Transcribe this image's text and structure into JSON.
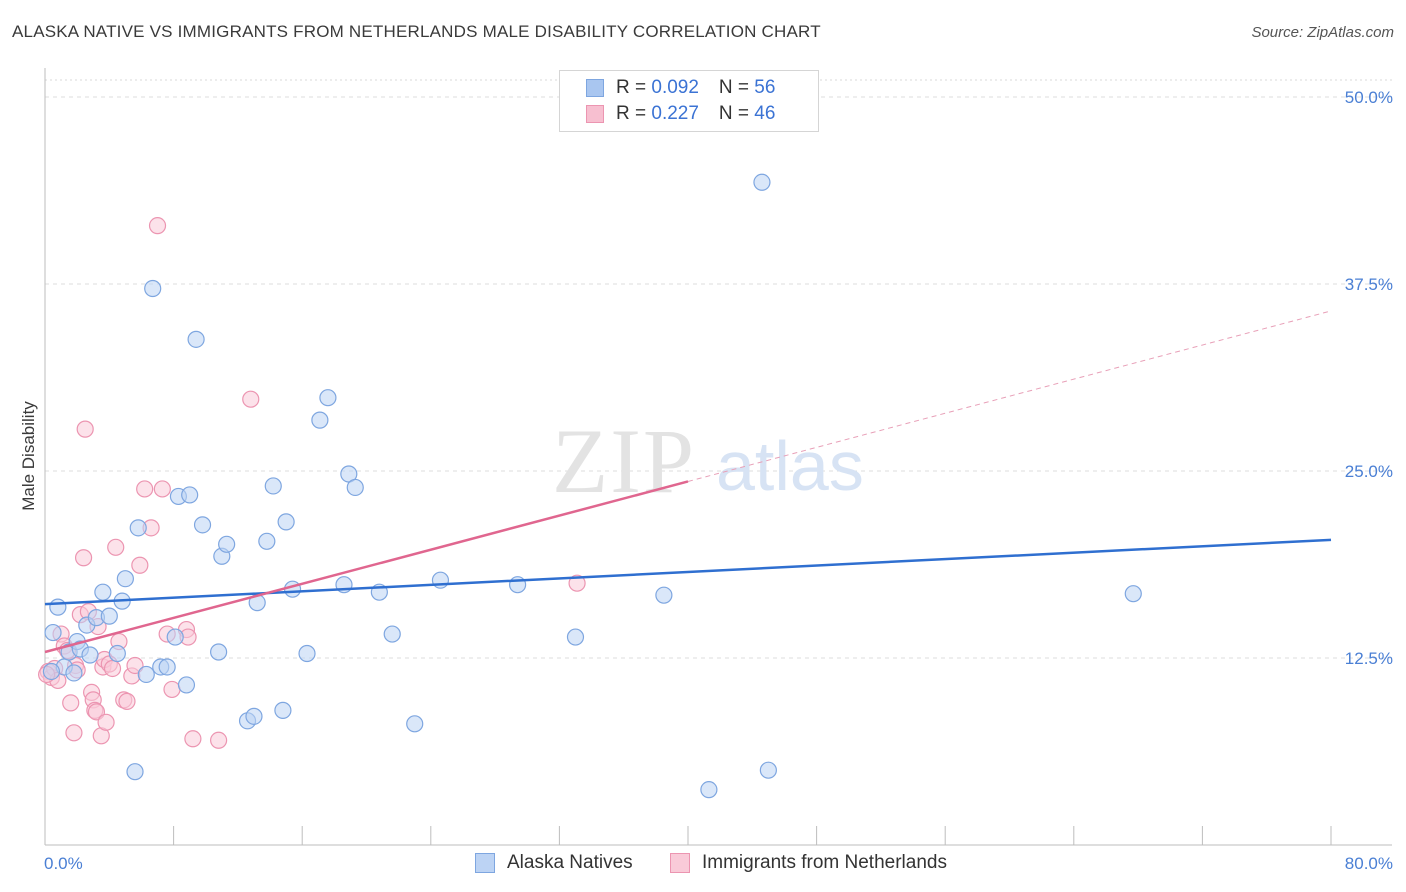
{
  "title": "ALASKA NATIVE VS IMMIGRANTS FROM NETHERLANDS MALE DISABILITY CORRELATION CHART",
  "source": "Source: ZipAtlas.com",
  "watermark": {
    "zip": "ZIP",
    "atlas": "atlas"
  },
  "legend": {
    "rows": [
      {
        "r_label": "R = ",
        "r_value": "0.092",
        "n_label": "N = ",
        "n_value": "56",
        "color": "#a9c6f0",
        "border": "#7ea6e0"
      },
      {
        "r_label": "R = ",
        "r_value": "0.227",
        "n_label": "N = ",
        "n_value": "46",
        "color": "#f7bfd0",
        "border": "#ec95b1"
      }
    ]
  },
  "bottom_legend": [
    {
      "label": "Alaska Natives",
      "color": "#bcd3f4",
      "border": "#7ea6e0"
    },
    {
      "label": "Immigrants from Netherlands",
      "color": "#f9cad8",
      "border": "#ec95b1"
    }
  ],
  "chart_data": {
    "type": "scatter",
    "title": "ALASKA NATIVE VS IMMIGRANTS FROM NETHERLANDS MALE DISABILITY CORRELATION CHART",
    "xlabel": "",
    "ylabel": "Male Disability",
    "xlim": [
      0,
      80
    ],
    "ylim": [
      0,
      50
    ],
    "x_ticks": [
      "0.0%",
      "80.0%"
    ],
    "y_ticks": [
      {
        "value": 12.5,
        "label": "12.5%"
      },
      {
        "value": 25.0,
        "label": "25.0%"
      },
      {
        "value": 37.5,
        "label": "37.5%"
      },
      {
        "value": 50.0,
        "label": "50.0%"
      }
    ],
    "grid": true,
    "series": [
      {
        "name": "Alaska Natives",
        "color": "#7ea6e0",
        "fill": "#bcd3f4",
        "trend": {
          "x": [
            0,
            80
          ],
          "y": [
            16.1,
            20.4
          ],
          "color": "#2f6fd0"
        },
        "points": [
          [
            0.5,
            14.2
          ],
          [
            0.8,
            15.9
          ],
          [
            1.2,
            11.9
          ],
          [
            1.5,
            12.9
          ],
          [
            1.8,
            11.5
          ],
          [
            2.0,
            13.6
          ],
          [
            2.2,
            13.1
          ],
          [
            2.6,
            14.7
          ],
          [
            2.8,
            12.7
          ],
          [
            3.2,
            15.2
          ],
          [
            3.6,
            16.9
          ],
          [
            4.0,
            15.3
          ],
          [
            4.5,
            12.8
          ],
          [
            4.8,
            16.3
          ],
          [
            5.0,
            17.8
          ],
          [
            5.6,
            4.9
          ],
          [
            5.8,
            21.2
          ],
          [
            6.3,
            11.4
          ],
          [
            6.7,
            37.2
          ],
          [
            7.2,
            11.9
          ],
          [
            7.6,
            11.9
          ],
          [
            8.1,
            13.9
          ],
          [
            8.3,
            23.3
          ],
          [
            8.8,
            10.7
          ],
          [
            9.0,
            23.4
          ],
          [
            9.4,
            33.8
          ],
          [
            9.8,
            21.4
          ],
          [
            10.8,
            12.9
          ],
          [
            11.0,
            19.3
          ],
          [
            11.3,
            20.1
          ],
          [
            12.6,
            8.3
          ],
          [
            13.0,
            8.6
          ],
          [
            13.2,
            16.2
          ],
          [
            13.8,
            20.3
          ],
          [
            14.2,
            24.0
          ],
          [
            14.8,
            9.0
          ],
          [
            15.0,
            21.6
          ],
          [
            15.4,
            17.1
          ],
          [
            16.3,
            12.8
          ],
          [
            17.1,
            28.4
          ],
          [
            17.6,
            29.9
          ],
          [
            18.6,
            17.4
          ],
          [
            18.9,
            24.8
          ],
          [
            19.3,
            23.9
          ],
          [
            20.8,
            16.9
          ],
          [
            21.6,
            14.1
          ],
          [
            23.0,
            8.1
          ],
          [
            24.6,
            17.7
          ],
          [
            29.4,
            17.4
          ],
          [
            33.0,
            13.9
          ],
          [
            38.5,
            16.7
          ],
          [
            41.3,
            3.7
          ],
          [
            44.6,
            44.3
          ],
          [
            45.0,
            5.0
          ],
          [
            67.7,
            16.8
          ],
          [
            0.4,
            11.6
          ]
        ]
      },
      {
        "name": "Immigrants from Netherlands",
        "color": "#ec95b1",
        "fill": "#f9cad8",
        "trend": {
          "x": [
            0,
            40
          ],
          "y": [
            12.9,
            24.3
          ],
          "color": "#e0668f"
        },
        "trend_extension": {
          "x": [
            40,
            80
          ],
          "y": [
            24.3,
            35.7
          ]
        },
        "points": [
          [
            0.2,
            11.6
          ],
          [
            0.4,
            11.2
          ],
          [
            0.6,
            11.8
          ],
          [
            0.8,
            11.0
          ],
          [
            1.0,
            14.1
          ],
          [
            1.2,
            13.3
          ],
          [
            1.4,
            13.0
          ],
          [
            1.6,
            9.5
          ],
          [
            1.8,
            7.5
          ],
          [
            1.9,
            12.0
          ],
          [
            2.0,
            11.7
          ],
          [
            2.2,
            15.4
          ],
          [
            2.4,
            19.2
          ],
          [
            2.5,
            27.8
          ],
          [
            2.7,
            15.6
          ],
          [
            2.9,
            10.2
          ],
          [
            3.0,
            9.7
          ],
          [
            3.1,
            9.0
          ],
          [
            3.2,
            8.9
          ],
          [
            3.3,
            14.6
          ],
          [
            3.5,
            7.3
          ],
          [
            3.6,
            11.9
          ],
          [
            3.7,
            12.4
          ],
          [
            3.8,
            8.2
          ],
          [
            4.0,
            12.1
          ],
          [
            4.2,
            11.8
          ],
          [
            4.4,
            19.9
          ],
          [
            4.6,
            13.6
          ],
          [
            4.9,
            9.7
          ],
          [
            5.1,
            9.6
          ],
          [
            5.4,
            11.3
          ],
          [
            5.6,
            12.0
          ],
          [
            5.9,
            18.7
          ],
          [
            6.2,
            23.8
          ],
          [
            6.6,
            21.2
          ],
          [
            7.0,
            41.4
          ],
          [
            7.3,
            23.8
          ],
          [
            7.6,
            14.1
          ],
          [
            7.9,
            10.4
          ],
          [
            8.8,
            14.4
          ],
          [
            8.9,
            13.9
          ],
          [
            9.2,
            7.1
          ],
          [
            10.8,
            7.0
          ],
          [
            12.8,
            29.8
          ],
          [
            33.1,
            17.5
          ],
          [
            0.1,
            11.4
          ]
        ]
      }
    ]
  }
}
